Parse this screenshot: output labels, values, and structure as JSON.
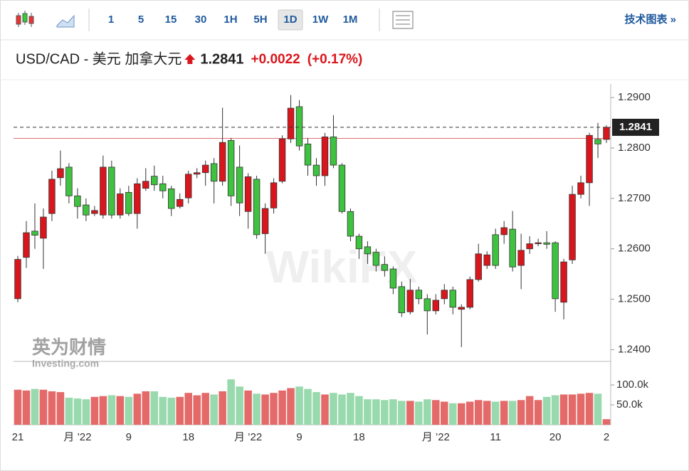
{
  "toolbar": {
    "intervals": [
      "1",
      "5",
      "15",
      "30",
      "1H",
      "5H",
      "1D",
      "1W",
      "1M"
    ],
    "selected_index": 6,
    "link": "技术图表 »"
  },
  "header": {
    "symbol": "USD/CAD - 美元 加拿大元",
    "price": 1.2841,
    "change": "+0.0022",
    "change_pct": "(+0.17%)"
  },
  "logo": {
    "cn": "英为财情",
    "en": "Investing.com"
  },
  "watermark": "WikiFX",
  "chart_data": {
    "type": "candlestick",
    "categories": [
      "21",
      null,
      null,
      null,
      null,
      null,
      null,
      "月 ’22",
      null,
      null,
      null,
      null,
      null,
      "9",
      null,
      null,
      null,
      null,
      null,
      null,
      "18",
      null,
      null,
      null,
      null,
      null,
      null,
      "月 ’22",
      null,
      null,
      null,
      null,
      null,
      "9",
      null,
      null,
      null,
      null,
      null,
      null,
      "18",
      null,
      null,
      null,
      null,
      null,
      null,
      null,
      null,
      "月 ’22",
      null,
      null,
      null,
      null,
      null,
      null,
      "11",
      null,
      null,
      null,
      null,
      null,
      null,
      "20",
      null,
      null,
      null,
      null,
      null,
      "2"
    ],
    "open": [
      1.2501,
      1.2583,
      1.2635,
      1.2621,
      1.267,
      1.2741,
      1.2762,
      1.2705,
      1.2687,
      1.267,
      1.2667,
      1.2762,
      1.2667,
      1.2712,
      1.267,
      1.272,
      1.2744,
      1.2729,
      1.2719,
      1.2684,
      1.2701,
      1.2748,
      1.2751,
      1.2769,
      1.2734,
      1.2815,
      1.2762,
      1.2674,
      1.2738,
      1.263,
      1.2681,
      1.2734,
      1.2818,
      1.2882,
      1.2808,
      1.2766,
      1.2745,
      1.2822,
      1.2766,
      1.2674,
      1.2625,
      1.2604,
      1.2593,
      1.2569,
      1.256,
      1.2525,
      1.2475,
      1.2518,
      1.2501,
      1.2477,
      1.2501,
      1.2518,
      1.248,
      1.2484,
      1.2539,
      1.2567,
      1.2628,
      1.2628,
      1.2639,
      1.2567,
      1.26,
      1.261,
      1.2612,
      1.2612,
      1.2494,
      1.2578,
      1.2708,
      1.2731,
      1.2817,
      1.2817
    ],
    "high": [
      1.2586,
      1.2655,
      1.269,
      1.268,
      1.2755,
      1.2795,
      1.277,
      1.272,
      1.27,
      1.2685,
      1.2785,
      1.2775,
      1.272,
      1.2725,
      1.274,
      1.276,
      1.2765,
      1.2745,
      1.2725,
      1.271,
      1.2755,
      1.276,
      1.2775,
      1.278,
      1.288,
      1.282,
      1.2805,
      1.275,
      1.2745,
      1.269,
      1.274,
      1.2825,
      1.2905,
      1.2895,
      1.282,
      1.278,
      1.283,
      1.2865,
      1.277,
      1.268,
      1.263,
      1.2615,
      1.26,
      1.2585,
      1.2565,
      1.2535,
      1.254,
      1.2525,
      1.251,
      1.251,
      1.253,
      1.2525,
      1.249,
      1.2545,
      1.261,
      1.2595,
      1.264,
      1.2655,
      1.2675,
      1.263,
      1.2625,
      1.262,
      1.2635,
      1.2615,
      1.258,
      1.2725,
      1.2745,
      1.283,
      1.285,
      1.2845
    ],
    "low": [
      1.2494,
      1.2562,
      1.26,
      1.256,
      1.2655,
      1.2725,
      1.269,
      1.266,
      1.2655,
      1.2665,
      1.266,
      1.266,
      1.266,
      1.2665,
      1.264,
      1.2715,
      1.2715,
      1.27,
      1.2665,
      1.268,
      1.269,
      1.274,
      1.2725,
      1.269,
      1.2725,
      1.2685,
      1.2665,
      1.264,
      1.262,
      1.259,
      1.267,
      1.273,
      1.281,
      1.2795,
      1.2745,
      1.2725,
      1.2725,
      1.276,
      1.267,
      1.2615,
      1.258,
      1.257,
      1.2555,
      1.2545,
      1.251,
      1.2465,
      1.247,
      1.249,
      1.243,
      1.247,
      1.249,
      1.247,
      1.2405,
      1.248,
      1.2535,
      1.256,
      1.256,
      1.261,
      1.2555,
      1.252,
      1.259,
      1.2605,
      1.26,
      1.2475,
      1.246,
      1.257,
      1.27,
      1.2685,
      1.278,
      1.281
    ],
    "close": [
      1.2579,
      1.2632,
      1.2627,
      1.2663,
      1.2738,
      1.2759,
      1.2705,
      1.2684,
      1.2667,
      1.2676,
      1.2762,
      1.2667,
      1.2709,
      1.267,
      1.2729,
      1.2734,
      1.2727,
      1.2715,
      1.268,
      1.2698,
      1.2748,
      1.2751,
      1.2766,
      1.2734,
      1.2811,
      1.2705,
      1.2691,
      1.2743,
      1.2628,
      1.268,
      1.2731,
      1.2818,
      1.2879,
      1.2804,
      1.2766,
      1.2745,
      1.2822,
      1.2766,
      1.2674,
      1.2625,
      1.26,
      1.259,
      1.2567,
      1.2557,
      1.2522,
      1.2473,
      1.2518,
      1.2501,
      1.2477,
      1.2498,
      1.2518,
      1.2484,
      1.2484,
      1.2539,
      1.259,
      1.2588,
      1.2567,
      1.2642,
      1.2564,
      1.2597,
      1.261,
      1.2612,
      1.2609,
      1.2501,
      1.2574,
      1.2708,
      1.2731,
      1.2825,
      1.2808,
      1.2841
    ],
    "volume": [
      88000,
      86000,
      90000,
      88000,
      84000,
      82000,
      68000,
      66000,
      64000,
      70000,
      72000,
      74000,
      72000,
      70000,
      78000,
      84000,
      84000,
      70000,
      68000,
      70000,
      80000,
      74000,
      80000,
      76000,
      84000,
      114000,
      96000,
      86000,
      78000,
      76000,
      80000,
      86000,
      92000,
      96000,
      90000,
      82000,
      76000,
      80000,
      76000,
      80000,
      72000,
      64000,
      64000,
      62000,
      64000,
      60000,
      60000,
      58000,
      64000,
      62000,
      58000,
      54000,
      54000,
      58000,
      62000,
      60000,
      58000,
      60000,
      60000,
      62000,
      72000,
      62000,
      70000,
      74000,
      76000,
      76000,
      78000,
      80000,
      78000,
      14000
    ],
    "prev_close": 1.2819,
    "ylim": [
      1.2378,
      1.2927
    ],
    "yticks": [
      {
        "value": 1.29,
        "label": "1.2900"
      },
      {
        "value": 1.28,
        "label": "1.2800"
      },
      {
        "value": 1.27,
        "label": "1.2700"
      },
      {
        "value": 1.26,
        "label": "1.2600"
      },
      {
        "value": 1.25,
        "label": "1.2500"
      },
      {
        "value": 1.24,
        "label": "1.2400"
      }
    ],
    "volume_ylim": [
      0,
      159000
    ],
    "volume_ticks": [
      {
        "value": 100000,
        "label": "100.0k"
      },
      {
        "value": 50000,
        "label": "50.0k"
      }
    ],
    "up_color": "#d9161c",
    "down_color": "#3fc23f",
    "volume_up_color": "#e46a6a",
    "volume_down_color": "#98d9ad"
  }
}
